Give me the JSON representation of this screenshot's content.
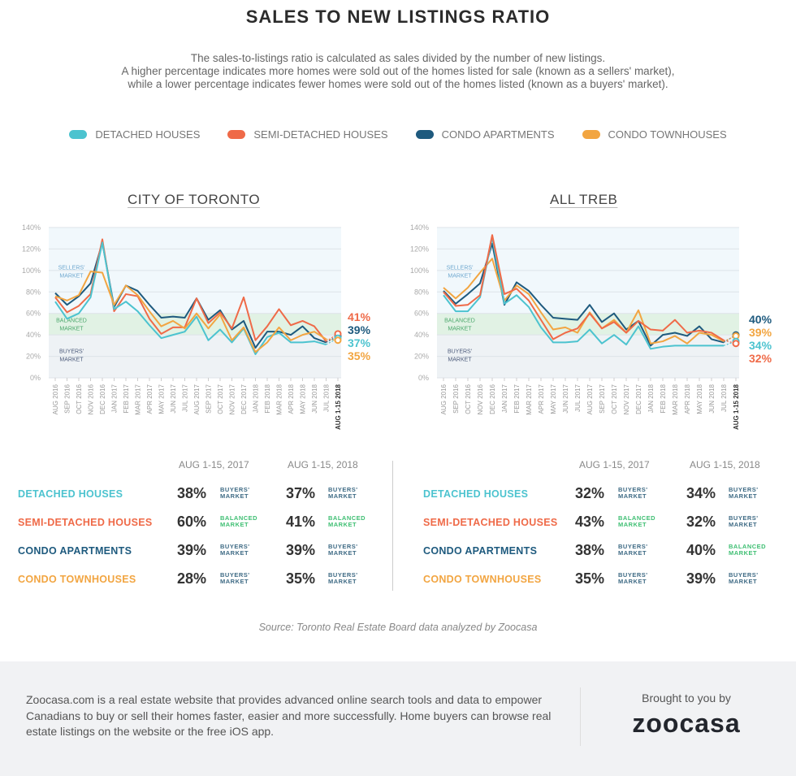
{
  "header": {
    "title": "SALES TO NEW LISTINGS RATIO",
    "description": [
      "The sales-to-listings ratio is calculated as sales divided by the number of new listings.",
      "A higher percentage indicates more homes were sold out of the homes listed for sale (known as a sellers' market),",
      "while a lower percentage indicates fewer homes were sold out of the homes listed (known as a buyers' market)."
    ]
  },
  "legend": [
    {
      "label": "DETACHED HOUSES",
      "color": "#4cc3cf"
    },
    {
      "label": "SEMI-DETACHED HOUSES",
      "color": "#ef6a48"
    },
    {
      "label": "CONDO APARTMENTS",
      "color": "#1e5a7e"
    },
    {
      "label": "CONDO TOWNHOUSES",
      "color": "#f2a541"
    }
  ],
  "zones": {
    "sellers": "SELLERS' MARKET",
    "balanced": "BALANCED MARKET",
    "buyers": "BUYERS' MARKET"
  },
  "chart_data": [
    {
      "type": "line",
      "title": "CITY OF TORONTO",
      "ylim": [
        0,
        140
      ],
      "yticks": [
        "0%",
        "20%",
        "40%",
        "60%",
        "80%",
        "100%",
        "120%",
        "140%"
      ],
      "grid": true,
      "bands": [
        {
          "name": "Balanced Market",
          "from": 40,
          "to": 60
        }
      ],
      "categories": [
        "AUG 2016",
        "SEP 2016",
        "OCT 2016",
        "NOV 2016",
        "DEC 2016",
        "JAN 2017",
        "FEB 2017",
        "MAR 2017",
        "APR 2017",
        "MAY 2017",
        "JUN 2017",
        "JUL 2017",
        "AUG 2017",
        "SEP 2017",
        "OCT 2017",
        "NOV 2017",
        "DEC 2017",
        "JAN 2018",
        "FEB 2018",
        "MAR 2018",
        "APR 2018",
        "MAY 2018",
        "JUN 2018",
        "JUL 2018",
        "AUG 1-15 2018"
      ],
      "series": [
        {
          "name": "CONDO APARTMENTS",
          "color": "#1e5a7e",
          "values": [
            79,
            68,
            76,
            88,
            126,
            66,
            86,
            81,
            68,
            56,
            57,
            56,
            74,
            54,
            63,
            45,
            53,
            28,
            43,
            43,
            40,
            48,
            37,
            33,
            39
          ],
          "end_label": "39%"
        },
        {
          "name": "SEMI-DETACHED HOUSES",
          "color": "#ef6a48",
          "values": [
            75,
            61,
            67,
            78,
            129,
            62,
            78,
            76,
            55,
            41,
            47,
            47,
            74,
            51,
            61,
            46,
            75,
            35,
            48,
            64,
            49,
            53,
            48,
            34,
            41
          ],
          "end_label": "41%"
        },
        {
          "name": "DETACHED HOUSES",
          "color": "#4cc3cf",
          "values": [
            71,
            55,
            60,
            75,
            126,
            64,
            71,
            62,
            49,
            37,
            40,
            43,
            57,
            35,
            45,
            33,
            46,
            22,
            38,
            42,
            33,
            33,
            34,
            31,
            37
          ],
          "end_label": "37%"
        },
        {
          "name": "CONDO TOWNHOUSES",
          "color": "#f2a541",
          "values": [
            76,
            72,
            77,
            99,
            98,
            68,
            86,
            77,
            62,
            48,
            53,
            46,
            60,
            46,
            59,
            35,
            47,
            24,
            33,
            47,
            35,
            40,
            43,
            36,
            35
          ],
          "end_label": "35%"
        }
      ],
      "end_label_order": [
        "SEMI-DETACHED HOUSES",
        "CONDO APARTMENTS",
        "DETACHED HOUSES",
        "CONDO TOWNHOUSES"
      ]
    },
    {
      "type": "line",
      "title": "ALL TREB",
      "ylim": [
        0,
        140
      ],
      "yticks": [
        "0%",
        "20%",
        "40%",
        "60%",
        "80%",
        "100%",
        "120%",
        "140%"
      ],
      "grid": true,
      "bands": [
        {
          "name": "Balanced Market",
          "from": 40,
          "to": 60
        }
      ],
      "categories": [
        "AUG 2016",
        "SEP 2016",
        "OCT 2016",
        "NOV 2016",
        "DEC 2016",
        "JAN 2017",
        "FEB 2017",
        "MAR 2017",
        "APR 2017",
        "MAY 2017",
        "JUN 2017",
        "JUL 2017",
        "AUG 2017",
        "SEP 2017",
        "OCT 2017",
        "NOV 2017",
        "DEC 2017",
        "JAN 2018",
        "FEB 2018",
        "MAR 2018",
        "APR 2018",
        "MAY 2018",
        "JUN 2018",
        "JUL 2018",
        "AUG 1-15 2018"
      ],
      "series": [
        {
          "name": "CONDO APARTMENTS",
          "color": "#1e5a7e",
          "values": [
            81,
            69,
            78,
            88,
            125,
            68,
            89,
            81,
            68,
            56,
            55,
            54,
            68,
            52,
            60,
            45,
            53,
            30,
            40,
            42,
            39,
            48,
            36,
            33,
            40
          ],
          "end_label": "40%"
        },
        {
          "name": "CONDO TOWNHOUSES",
          "color": "#f2a541",
          "values": [
            84,
            74,
            84,
            98,
            111,
            72,
            86,
            78,
            61,
            45,
            47,
            42,
            61,
            46,
            54,
            42,
            63,
            32,
            34,
            39,
            32,
            42,
            40,
            34,
            39
          ],
          "end_label": "39%"
        },
        {
          "name": "DETACHED HOUSES",
          "color": "#4cc3cf",
          "values": [
            77,
            62,
            62,
            75,
            131,
            69,
            77,
            66,
            47,
            33,
            33,
            34,
            45,
            32,
            40,
            31,
            48,
            27,
            29,
            30,
            30,
            30,
            30,
            30,
            34
          ],
          "end_label": "34%"
        },
        {
          "name": "SEMI-DETACHED HOUSES",
          "color": "#ef6a48",
          "values": [
            80,
            67,
            68,
            77,
            133,
            78,
            83,
            72,
            54,
            36,
            42,
            46,
            60,
            46,
            52,
            42,
            53,
            45,
            44,
            54,
            42,
            44,
            42,
            35,
            32
          ],
          "end_label": "32%"
        }
      ],
      "end_label_order": [
        "CONDO APARTMENTS",
        "CONDO TOWNHOUSES",
        "DETACHED HOUSES",
        "SEMI-DETACHED HOUSES"
      ]
    }
  ],
  "tables": [
    {
      "name": "toronto",
      "headers": [
        "AUG 1-15, 2017",
        "AUG 1-15, 2018"
      ],
      "rows": [
        {
          "label": "DETACHED HOUSES",
          "color": "#4cc3cf",
          "v2017": "38%",
          "m2017": "buyers",
          "v2018": "37%",
          "m2018": "buyers"
        },
        {
          "label": "SEMI-DETACHED HOUSES",
          "color": "#ef6a48",
          "v2017": "60%",
          "m2017": "balanced",
          "v2018": "41%",
          "m2018": "balanced"
        },
        {
          "label": "CONDO APARTMENTS",
          "color": "#1e5a7e",
          "v2017": "39%",
          "m2017": "buyers",
          "v2018": "39%",
          "m2018": "buyers"
        },
        {
          "label": "CONDO TOWNHOUSES",
          "color": "#f2a541",
          "v2017": "28%",
          "m2017": "buyers",
          "v2018": "35%",
          "m2018": "buyers"
        }
      ]
    },
    {
      "name": "treb",
      "headers": [
        "AUG 1-15, 2017",
        "AUG 1-15, 2018"
      ],
      "rows": [
        {
          "label": "DETACHED HOUSES",
          "color": "#4cc3cf",
          "v2017": "32%",
          "m2017": "buyers",
          "v2018": "34%",
          "m2018": "buyers"
        },
        {
          "label": "SEMI-DETACHED HOUSES",
          "color": "#ef6a48",
          "v2017": "43%",
          "m2017": "balanced",
          "v2018": "32%",
          "m2018": "buyers"
        },
        {
          "label": "CONDO APARTMENTS",
          "color": "#1e5a7e",
          "v2017": "38%",
          "m2017": "buyers",
          "v2018": "40%",
          "m2018": "balanced"
        },
        {
          "label": "CONDO TOWNHOUSES",
          "color": "#f2a541",
          "v2017": "35%",
          "m2017": "buyers",
          "v2018": "39%",
          "m2018": "buyers"
        }
      ]
    }
  ],
  "market_labels": {
    "buyers": [
      "BUYERS'",
      "MARKET"
    ],
    "balanced": [
      "BALANCED",
      "MARKET"
    ]
  },
  "market_colors": {
    "buyers": "#3f6b85",
    "balanced": "#3fbf73"
  },
  "source": "Source: Toronto Real Estate Board data analyzed by Zoocasa",
  "footer": {
    "text": "Zoocasa.com is a real estate website that provides advanced online search tools and data to empower Canadians to buy or sell their homes faster, easier and more successfully. Home buyers can browse real estate listings on the website or the free iOS app.",
    "brought_by": "Brought to you by",
    "logo": "zoocasa"
  }
}
